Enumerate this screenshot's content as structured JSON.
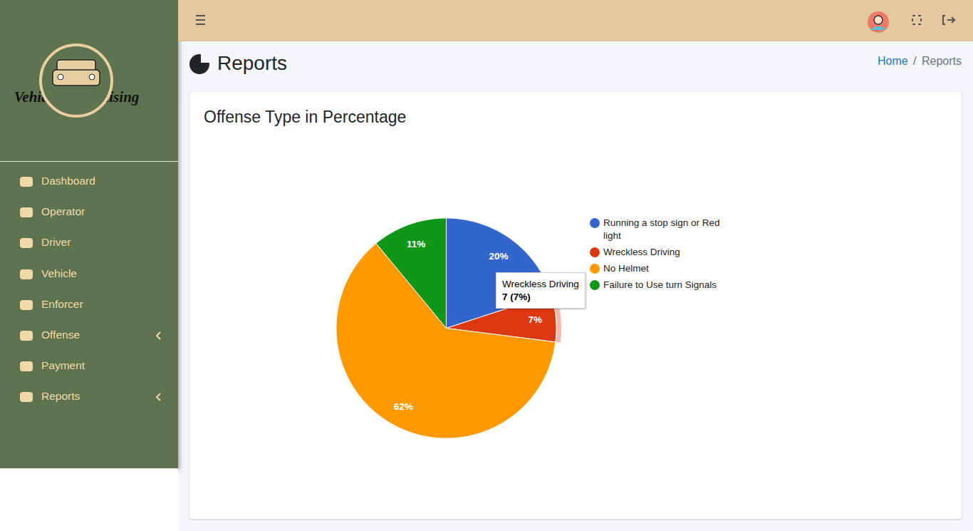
{
  "sidebar": {
    "brand": "Vehicle Franchising",
    "menu": [
      {
        "label": "Dashboard"
      },
      {
        "label": "Operator"
      },
      {
        "label": "Driver"
      },
      {
        "label": "Vehicle"
      },
      {
        "label": "Enforcer"
      },
      {
        "label": "Offense",
        "expandable": true
      },
      {
        "label": "Payment"
      },
      {
        "label": "Reports",
        "expandable": true
      }
    ]
  },
  "page": {
    "title": "Reports",
    "breadcrumb": [
      "Home",
      "Reports"
    ],
    "breadcrumb_separator": "/"
  },
  "chart_data": {
    "type": "pie",
    "title": "Offense Type in Percentage",
    "categories": [
      "Running a stop sign or Red light",
      "Wreckless Driving",
      "No Helmet",
      "Failure to Use turn Signals"
    ],
    "values": [
      20,
      7,
      62,
      11
    ],
    "value_labels": [
      "20%",
      "7%",
      "62%",
      "11%"
    ],
    "colors": [
      "#3366cc",
      "#dc3912",
      "#ff9900",
      "#109618"
    ],
    "data_labels": true,
    "legend": "right",
    "tooltip": {
      "category": "Wreckless Driving",
      "value": 7,
      "label": "7 (7%)"
    }
  }
}
